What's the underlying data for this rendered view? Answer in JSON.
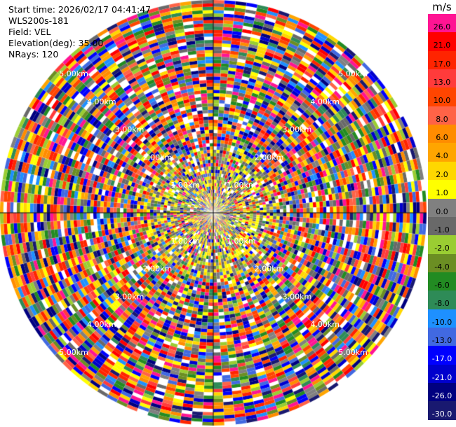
{
  "info": {
    "start_time": "Start time: 2026/02/17 04:41:47",
    "station": "WLS200s-181",
    "field": "Field: VEL",
    "elevation": "Elevation(deg): 35.00",
    "nrays": "NRays: 120"
  },
  "chart_data": {
    "type": "ppi",
    "rays": 120,
    "range_rings": [
      {
        "label": "1.00km",
        "range_km": 1
      },
      {
        "label": "2.00km",
        "range_km": 2
      },
      {
        "label": "3.00km",
        "range_km": 3
      },
      {
        "label": "4.00km",
        "range_km": 4
      },
      {
        "label": "5.00km",
        "range_km": 5
      }
    ],
    "max_range_km": 5.4,
    "colorbar": {
      "unit": "m/s",
      "ticks": [
        "26.0",
        "21.0",
        "17.0",
        "13.0",
        "10.0",
        "8.0",
        "6.0",
        "4.0",
        "2.0",
        "1.0",
        "0.0",
        "-1.0",
        "-2.0",
        "-4.0",
        "-6.0",
        "-8.0",
        "-10.0",
        "-13.0",
        "-17.0",
        "-21.0",
        "-26.0",
        "-30.0"
      ],
      "colors": [
        "#ff1493",
        "#ff0000",
        "#ff2400",
        "#ff3b3b",
        "#ff4500",
        "#ff6347",
        "#ff8c00",
        "#ffa500",
        "#ffd700",
        "#ffff00",
        "#808080",
        "#696969",
        "#9acd32",
        "#6b8e23",
        "#228b22",
        "#2e8b57",
        "#1e90ff",
        "#4169e1",
        "#0000ff",
        "#0000cd",
        "#000080",
        "#191970"
      ]
    }
  }
}
